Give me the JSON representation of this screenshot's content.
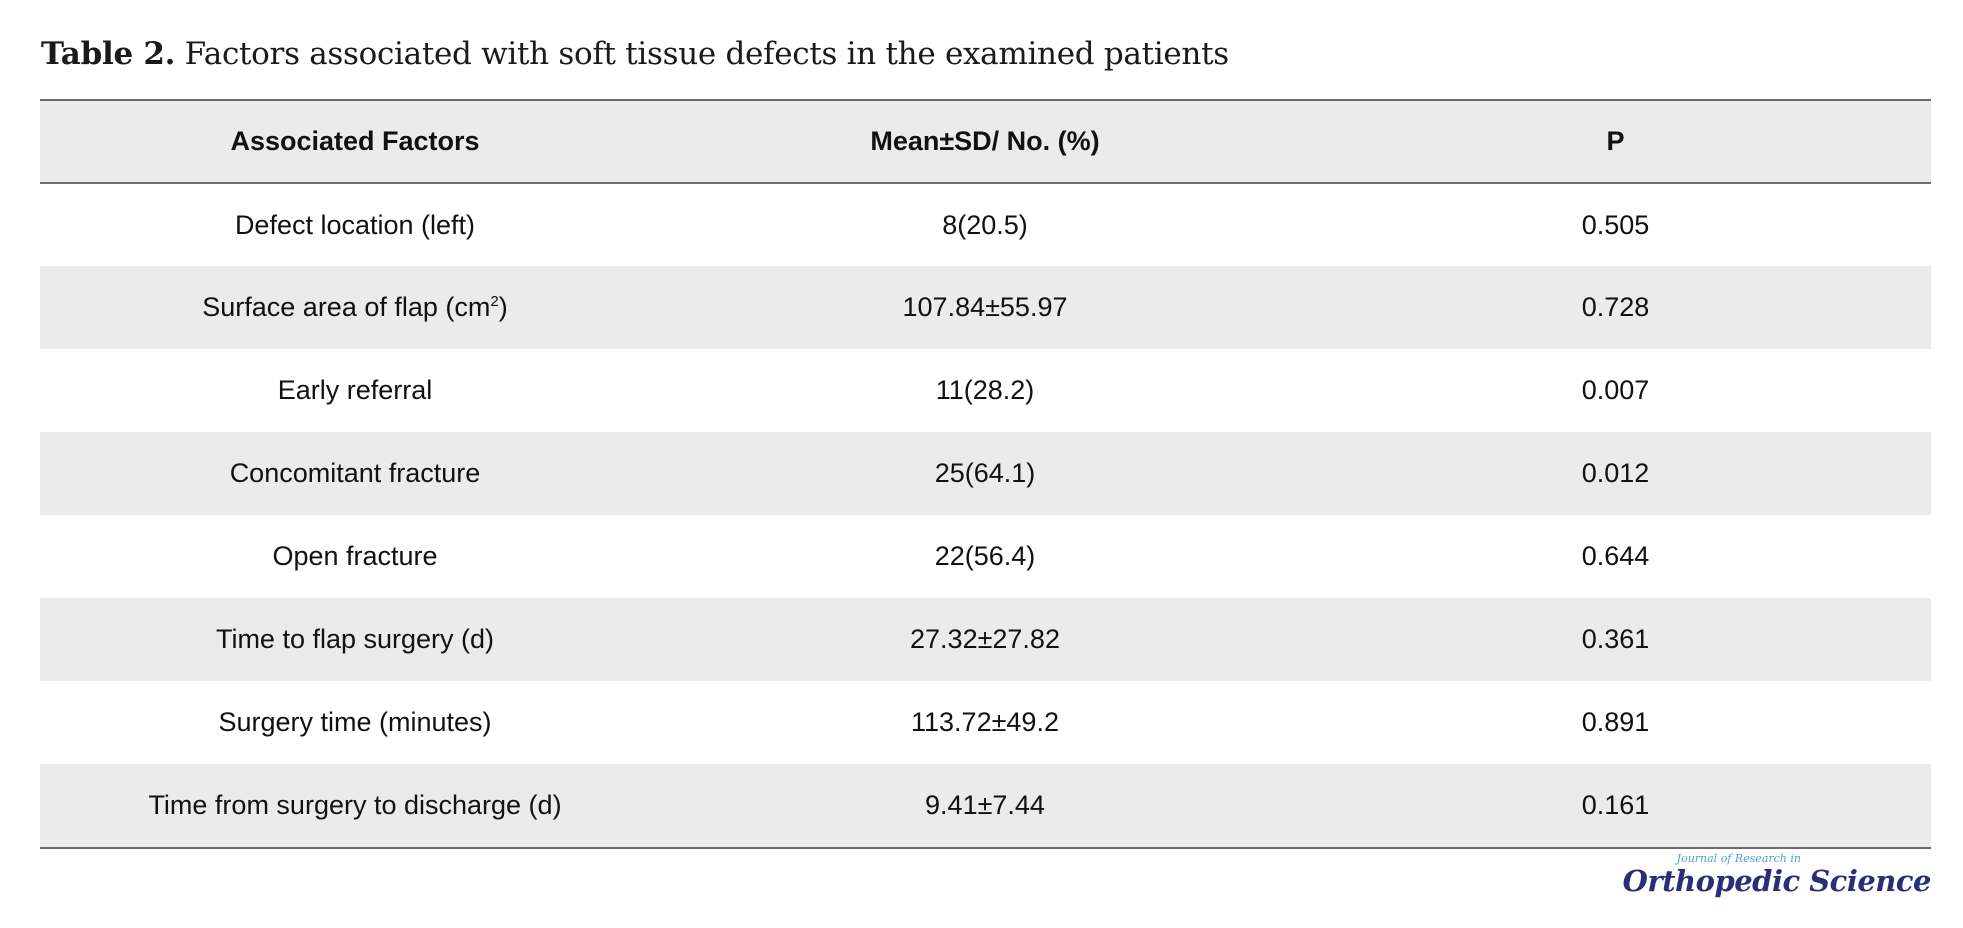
{
  "caption": {
    "label": "Table 2.",
    "text": " Factors associated with soft tissue defects in the examined patients"
  },
  "table": {
    "headers": [
      "Associated Factors",
      "Mean±SD/ No. (%)",
      "P"
    ],
    "rows": [
      {
        "factor": "Defect location (left)",
        "value": "8(20.5)",
        "p": "0.505"
      },
      {
        "factor": "Surface area of flap (cm",
        "factor_sup": "2",
        "factor_suffix": ")",
        "value": "107.84±55.97",
        "p": "0.728"
      },
      {
        "factor": "Early referral",
        "value": "11(28.2)",
        "p": "0.007"
      },
      {
        "factor": "Concomitant fracture",
        "value": "25(64.1)",
        "p": "0.012"
      },
      {
        "factor": "Open fracture",
        "value": "22(56.4)",
        "p": "0.644"
      },
      {
        "factor": "Time to flap surgery (d)",
        "value": "27.32±27.82",
        "p": "0.361"
      },
      {
        "factor": "Surgery time (minutes)",
        "value": "113.72±49.2",
        "p": "0.891"
      },
      {
        "factor": "Time from surgery to discharge (d)",
        "value": "9.41±7.44",
        "p": "0.161"
      }
    ]
  },
  "logo": {
    "small": "Journal of Research in",
    "big": "Orthopedic Science"
  }
}
